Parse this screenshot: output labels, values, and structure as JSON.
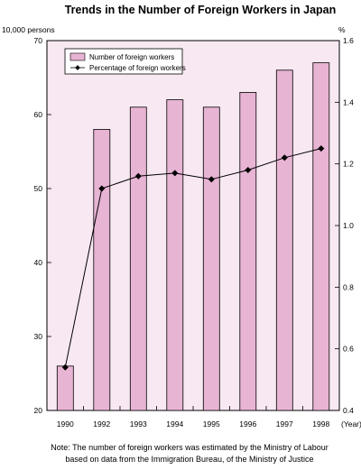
{
  "chart_data": {
    "type": "bar",
    "title": "Trends in the Number of Foreign Workers in Japan",
    "left_unit": "10,000 persons",
    "right_unit": "%",
    "x_unit": "(Year)",
    "categories": [
      "1990",
      "1992",
      "1993",
      "1994",
      "1995",
      "1996",
      "1997",
      "1998"
    ],
    "series": [
      {
        "name": "Number of foreign workers",
        "kind": "bar",
        "axis": "left",
        "color": "#e8b4d4",
        "values": [
          26,
          58,
          61,
          62,
          61,
          63,
          66,
          67
        ]
      },
      {
        "name": "Percentage of foreign workers",
        "kind": "line",
        "axis": "right",
        "color": "#000000",
        "values": [
          0.54,
          1.12,
          1.16,
          1.17,
          1.15,
          1.18,
          1.22,
          1.25
        ]
      }
    ],
    "ylim_left": [
      20,
      70
    ],
    "yticks_left": [
      "20",
      "30",
      "40",
      "50",
      "60",
      "70"
    ],
    "ylim_right": [
      0.4,
      1.6
    ],
    "yticks_right": [
      "0.4",
      "0.6",
      "0.8",
      "1.0",
      "1.2",
      "1.4",
      "1.6"
    ],
    "plot_background": "#f8e8f2",
    "legend_position": "top-left",
    "note_lines": [
      "Note: The number of foreign workers was estimated by the Ministry of Labour",
      "based on data from the Immigration Bureau, of the Ministry of Justice"
    ]
  }
}
